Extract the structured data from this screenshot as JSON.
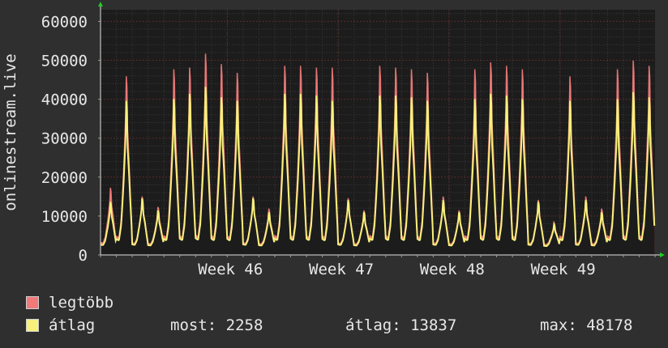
{
  "chart_data": {
    "type": "area",
    "title": "",
    "ylabel": "onlinestream.live",
    "xlabel": "",
    "ylim": [
      0,
      63000
    ],
    "y_ticks": [
      0,
      10000,
      20000,
      30000,
      40000,
      50000,
      60000
    ],
    "y_tick_labels": [
      "0",
      "10000",
      "20000",
      "30000",
      "40000",
      "50000",
      "60000"
    ],
    "x_ticks": [
      "Week 46",
      "Week 47",
      "Week 48",
      "Week 49"
    ],
    "grid": true,
    "day_index": [
      0,
      1,
      2,
      3,
      4,
      5,
      6,
      7,
      8,
      9,
      10,
      11,
      12,
      13,
      14,
      15,
      16,
      17,
      18,
      19,
      20,
      21,
      22,
      23,
      24,
      25,
      26,
      27,
      28,
      29,
      30,
      31,
      32,
      33,
      34
    ],
    "week_tick_days": [
      8,
      15,
      22,
      29
    ],
    "series": [
      {
        "name": "legtöbb",
        "color": "#f07a7a",
        "values": [
          19000,
          51000,
          16500,
          13500,
          53000,
          53500,
          57500,
          54500,
          52000,
          16500,
          13000,
          54000,
          54000,
          53500,
          53500,
          16000,
          12500,
          54000,
          53500,
          53000,
          52000,
          16500,
          12500,
          53000,
          55000,
          54000,
          53000,
          15500,
          9000,
          51000,
          16500,
          13000,
          53000,
          55500,
          54000
        ]
      },
      {
        "name": "átlag",
        "color": "#f8f07c",
        "values": [
          15000,
          44000,
          16000,
          12500,
          44500,
          46000,
          48000,
          45000,
          44000,
          16000,
          12000,
          46000,
          46000,
          45500,
          44000,
          15500,
          12000,
          45500,
          45500,
          45000,
          44000,
          15500,
          12000,
          44500,
          46000,
          45500,
          44500,
          15000,
          8500,
          44000,
          15500,
          12000,
          44500,
          46500,
          45000
        ]
      }
    ]
  },
  "legend": {
    "max_label": "legtöbb",
    "avg_label": "átlag",
    "now_text": "most: 2258",
    "avg_text": "átlag: 13837",
    "max_text": "max: 48178"
  },
  "colors": {
    "background": "#2f2f2f",
    "plot_background": "#1c1c1c",
    "grid": "#5a2a2a",
    "axis": "#e0e0e0",
    "arrow": "#22cc22"
  }
}
